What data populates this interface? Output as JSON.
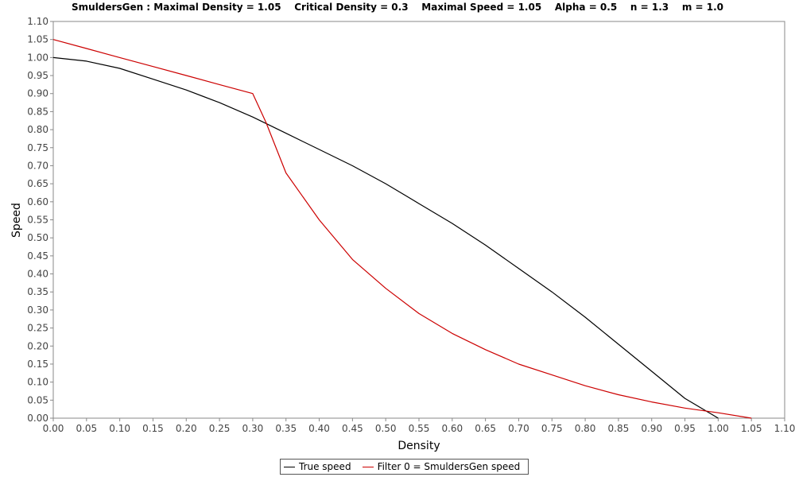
{
  "chart_data": {
    "type": "line",
    "title": "SmuldersGen : Maximal Density = 1.05    Critical Density = 0.3    Maximal Speed = 1.05    Alpha = 0.5    n = 1.3    m = 1.0",
    "xlabel": "Density",
    "ylabel": "Speed",
    "xlim": [
      0,
      1.1
    ],
    "ylim": [
      0,
      1.1
    ],
    "x_ticks": [
      "0.00",
      "0.05",
      "0.10",
      "0.15",
      "0.20",
      "0.25",
      "0.30",
      "0.35",
      "0.40",
      "0.45",
      "0.50",
      "0.55",
      "0.60",
      "0.65",
      "0.70",
      "0.75",
      "0.80",
      "0.85",
      "0.90",
      "0.95",
      "1.00",
      "1.05",
      "1.10"
    ],
    "y_ticks": [
      "0.00",
      "0.05",
      "0.10",
      "0.15",
      "0.20",
      "0.25",
      "0.30",
      "0.35",
      "0.40",
      "0.45",
      "0.50",
      "0.55",
      "0.60",
      "0.65",
      "0.70",
      "0.75",
      "0.80",
      "0.85",
      "0.90",
      "0.95",
      "1.00",
      "1.05",
      "1.10"
    ],
    "grid": false,
    "legend_position": "bottom",
    "series": [
      {
        "name": "True speed",
        "color": "#000000",
        "x": [
          0,
          0.05,
          0.1,
          0.15,
          0.2,
          0.25,
          0.3,
          0.35,
          0.4,
          0.45,
          0.5,
          0.55,
          0.6,
          0.65,
          0.7,
          0.75,
          0.8,
          0.85,
          0.9,
          0.95,
          1.0
        ],
        "y": [
          1.0,
          0.99,
          0.97,
          0.94,
          0.91,
          0.875,
          0.835,
          0.79,
          0.745,
          0.7,
          0.65,
          0.595,
          0.54,
          0.48,
          0.415,
          0.35,
          0.28,
          0.205,
          0.13,
          0.055,
          0.0
        ]
      },
      {
        "name": "Filter 0 = SmuldersGen speed",
        "color": "#cc0000",
        "x": [
          0,
          0.05,
          0.1,
          0.15,
          0.2,
          0.25,
          0.3,
          0.32,
          0.35,
          0.4,
          0.45,
          0.5,
          0.55,
          0.6,
          0.65,
          0.7,
          0.75,
          0.8,
          0.85,
          0.9,
          0.95,
          1.0,
          1.05
        ],
        "y": [
          1.05,
          1.025,
          1.0,
          0.975,
          0.95,
          0.925,
          0.9,
          0.82,
          0.68,
          0.55,
          0.44,
          0.36,
          0.29,
          0.235,
          0.19,
          0.15,
          0.12,
          0.09,
          0.065,
          0.045,
          0.028,
          0.015,
          0.0
        ]
      }
    ]
  }
}
